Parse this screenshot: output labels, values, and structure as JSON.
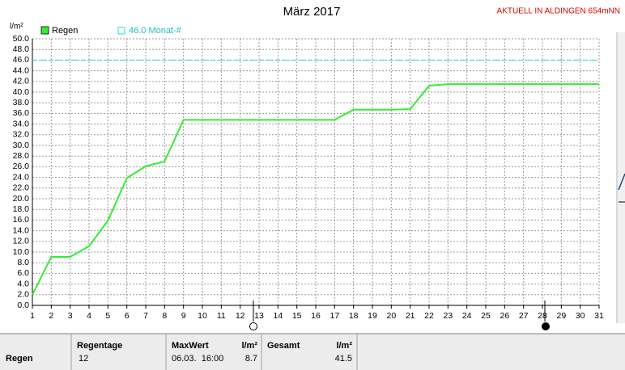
{
  "chart_data": {
    "type": "line",
    "title": "März 2017",
    "station": "AKTUELL IN ALDINGEN 654mNN",
    "ylabel": "l/m²",
    "x": [
      1,
      2,
      3,
      4,
      5,
      6,
      7,
      8,
      9,
      10,
      11,
      12,
      13,
      14,
      15,
      16,
      17,
      18,
      19,
      20,
      21,
      22,
      23,
      24,
      25,
      26,
      27,
      28,
      29,
      30,
      31
    ],
    "series": [
      {
        "name": "Regen",
        "color": "#33ee33",
        "values": [
          2.0,
          9.1,
          9.1,
          11.1,
          15.9,
          23.9,
          26.1,
          27.0,
          34.8,
          34.8,
          34.8,
          34.8,
          34.8,
          34.8,
          34.8,
          34.8,
          34.8,
          36.7,
          36.7,
          36.7,
          36.8,
          41.2,
          41.5,
          41.5,
          41.5,
          41.5,
          41.5,
          41.5,
          41.5,
          41.5,
          41.5
        ]
      }
    ],
    "reference": {
      "label": "46.0 Monat-#",
      "value": 46.0,
      "color": "#22dddd"
    },
    "xlim": [
      1,
      31
    ],
    "xticks": [
      1,
      2,
      3,
      4,
      5,
      6,
      7,
      8,
      9,
      10,
      11,
      12,
      13,
      14,
      15,
      16,
      17,
      18,
      19,
      20,
      21,
      22,
      23,
      24,
      25,
      26,
      27,
      28,
      29,
      30,
      31
    ],
    "ylim": [
      0,
      50
    ],
    "yticks": [
      {
        "value": 0,
        "label": "0.0"
      },
      {
        "value": 2,
        "label": "2.0"
      },
      {
        "value": 4,
        "label": "4.0"
      },
      {
        "value": 6,
        "label": "6.0"
      },
      {
        "value": 8,
        "label": "8.0"
      },
      {
        "value": 10,
        "label": "10.0"
      },
      {
        "value": 12,
        "label": "12.0"
      },
      {
        "value": 14,
        "label": "14.0"
      },
      {
        "value": 16,
        "label": "16.0"
      },
      {
        "value": 18,
        "label": "18.0"
      },
      {
        "value": 20,
        "label": "20.0"
      },
      {
        "value": 22,
        "label": "22.0"
      },
      {
        "value": 24,
        "label": "24.0"
      },
      {
        "value": 26,
        "label": "26.0"
      },
      {
        "value": 28,
        "label": "28.0"
      },
      {
        "value": 30,
        "label": "30.0"
      },
      {
        "value": 32,
        "label": "32.0"
      },
      {
        "value": 34,
        "label": "34.0"
      },
      {
        "value": 36,
        "label": "36.0"
      },
      {
        "value": 38,
        "label": "38.0"
      },
      {
        "value": 40,
        "label": "40.0"
      },
      {
        "value": 42,
        "label": "42.0"
      },
      {
        "value": 44,
        "label": "44.0"
      },
      {
        "value": 46,
        "label": "46.0"
      },
      {
        "value": 48,
        "label": "48.0"
      },
      {
        "value": 50,
        "label": "50.0"
      }
    ],
    "grid": true
  },
  "table": {
    "headers": [
      "Regentage",
      "MaxWert",
      "l/m²",
      "Gesamt",
      "l/m²"
    ],
    "rows": [
      [
        "Regen",
        "12",
        "06.03.  16:00",
        "8.7",
        "41.5"
      ]
    ]
  }
}
